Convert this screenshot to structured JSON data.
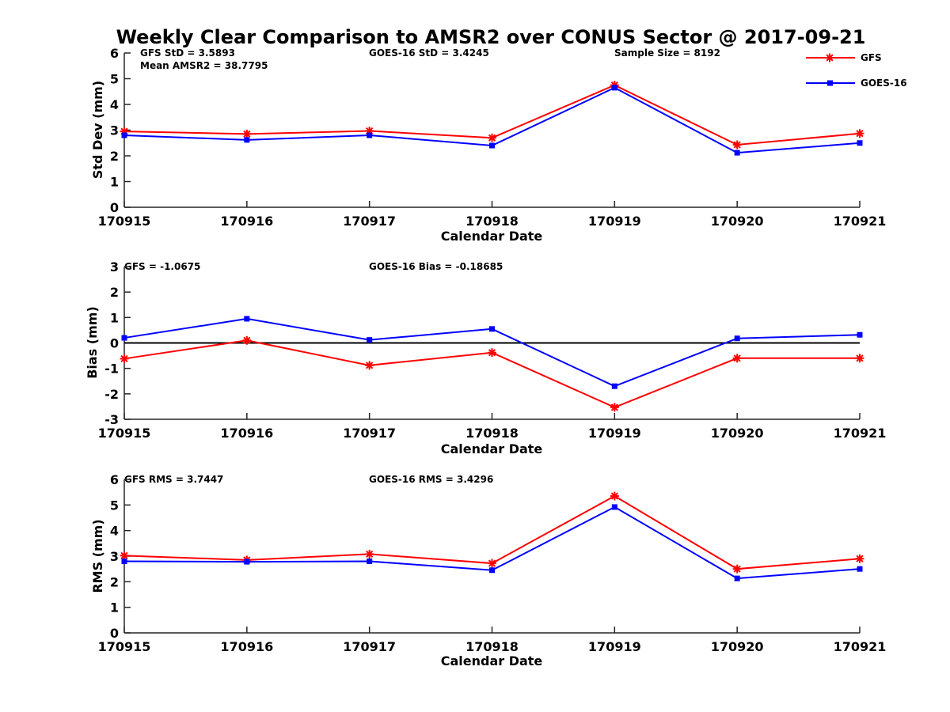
{
  "colors": {
    "gfs": "#ff0000",
    "goes16": "#0000ff",
    "axis": "#262626",
    "zero_line": "#000000"
  },
  "legend": {
    "placement": "top-right",
    "entries": [
      {
        "name": "GFS",
        "marker": "asterisk",
        "color": "#ff0000"
      },
      {
        "name": "GOES-16",
        "marker": "square",
        "color": "#0000ff"
      }
    ]
  },
  "chart_data": [
    {
      "type": "line",
      "title": "Weekly Clear Comparison to AMSR2 over CONUS Sector @ 2017-09-21",
      "categories": [
        "170915",
        "170916",
        "170917",
        "170918",
        "170919",
        "170920",
        "170921"
      ],
      "xlabel": "Calendar Date",
      "ylabel": "Std Dev (mm)",
      "ylim": [
        0,
        6
      ],
      "yticks": [
        0,
        1,
        2,
        3,
        4,
        5,
        6
      ],
      "zero_line": false,
      "annotations": [
        "GFS StD = 3.5893",
        "Mean AMSR2 = 38.7795",
        "GOES-16 StD = 3.4245",
        "Sample Size = 8192"
      ],
      "series": [
        {
          "name": "GFS",
          "values": [
            2.95,
            2.85,
            2.97,
            2.7,
            4.75,
            2.43,
            2.87
          ]
        },
        {
          "name": "GOES-16",
          "values": [
            2.8,
            2.62,
            2.8,
            2.4,
            4.65,
            2.12,
            2.5
          ]
        }
      ]
    },
    {
      "type": "line",
      "title": "",
      "categories": [
        "170915",
        "170916",
        "170917",
        "170918",
        "170919",
        "170920",
        "170921"
      ],
      "xlabel": "Calendar Date",
      "ylabel": "Bias (mm)",
      "ylim": [
        -3,
        3
      ],
      "yticks": [
        -3,
        -2,
        -1,
        0,
        1,
        2,
        3
      ],
      "zero_line": true,
      "annotations": [
        "GFS = -1.0675",
        "GOES-16 Bias  = -0.18685"
      ],
      "series": [
        {
          "name": "GFS",
          "values": [
            -0.62,
            0.1,
            -0.88,
            -0.38,
            -2.53,
            -0.6,
            -0.6
          ]
        },
        {
          "name": "GOES-16",
          "values": [
            0.2,
            0.95,
            0.12,
            0.55,
            -1.7,
            0.18,
            0.32
          ]
        }
      ]
    },
    {
      "type": "line",
      "title": "",
      "categories": [
        "170915",
        "170916",
        "170917",
        "170918",
        "170919",
        "170920",
        "170921"
      ],
      "xlabel": "Calendar Date",
      "ylabel": "RMS (mm)",
      "ylim": [
        0,
        6
      ],
      "yticks": [
        0,
        1,
        2,
        3,
        4,
        5,
        6
      ],
      "zero_line": false,
      "annotations": [
        "GFS RMS = 3.7447",
        "GOES-16 RMS = 3.4296"
      ],
      "series": [
        {
          "name": "GFS",
          "values": [
            3.02,
            2.85,
            3.08,
            2.72,
            5.35,
            2.5,
            2.9
          ]
        },
        {
          "name": "GOES-16",
          "values": [
            2.8,
            2.78,
            2.8,
            2.45,
            4.92,
            2.13,
            2.5
          ]
        }
      ]
    }
  ]
}
